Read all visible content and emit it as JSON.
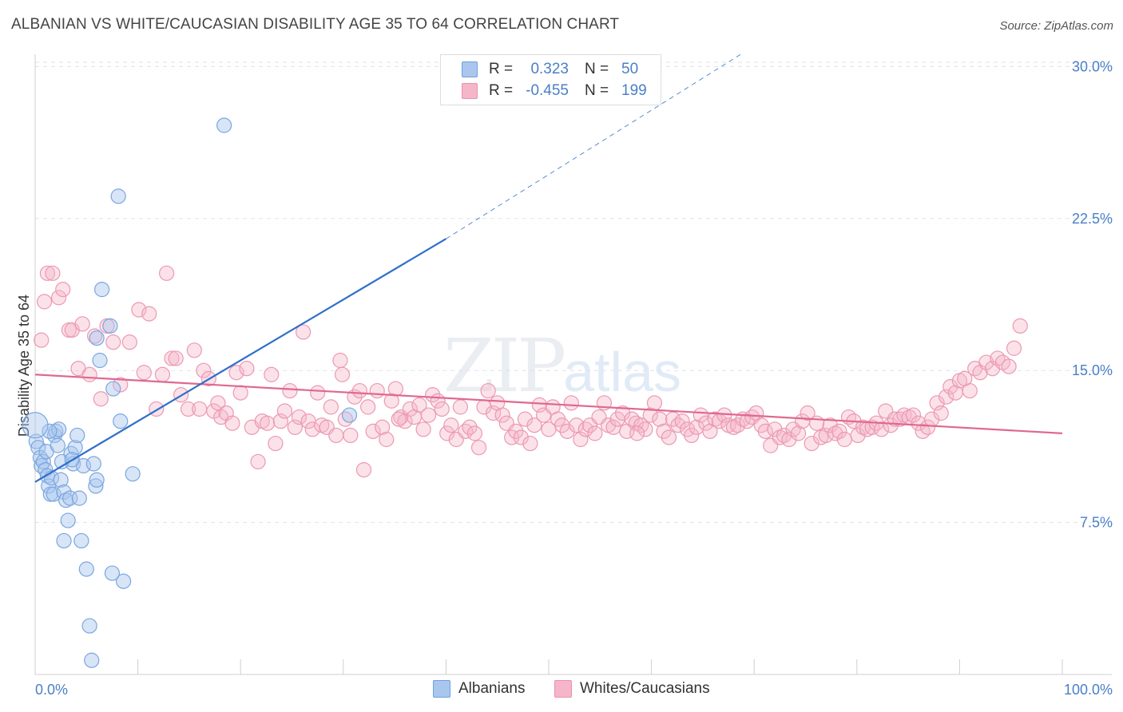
{
  "title": "ALBANIAN VS WHITE/CAUCASIAN DISABILITY AGE 35 TO 64 CORRELATION CHART",
  "source": "Source: ZipAtlas.com",
  "watermark": {
    "main": "ZIP",
    "sub": "atlas"
  },
  "legend": {
    "rows": [
      {
        "r_label": "R =",
        "r_value": "0.323",
        "n_label": "N =",
        "n_value": "50",
        "color": "#a9c6ee"
      },
      {
        "r_label": "R =",
        "r_value": "-0.455",
        "n_label": "N =",
        "n_value": "199",
        "color": "#f4b6c8"
      }
    ]
  },
  "bottom_legend": [
    {
      "label": "Albanians",
      "color": "#a9c6ee"
    },
    {
      "label": "Whites/Caucasians",
      "color": "#f4b6c8"
    }
  ],
  "chart_data": {
    "type": "scatter",
    "title": "ALBANIAN VS WHITE/CAUCASIAN DISABILITY AGE 35 TO 64 CORRELATION CHART",
    "xlabel": "",
    "ylabel": "Disability Age 35 to 64",
    "xlim": [
      0,
      100
    ],
    "ylim": [
      0,
      31
    ],
    "x_tick_labels": [
      "0.0%",
      "100.0%"
    ],
    "y_ticks": [
      7.5,
      15.0,
      22.5,
      30.0
    ],
    "y_tick_labels": [
      "7.5%",
      "15.0%",
      "22.5%",
      "30.0%"
    ],
    "grid": "horizontal dashed",
    "legend_position": "top-center",
    "colors": {
      "albanians": "#6f9fdc",
      "whites": "#ee8fae",
      "albanians_line": "#2f6fc9",
      "whites_line": "#e06890"
    },
    "series": [
      {
        "name": "Albanians",
        "r": 0.323,
        "n": 50,
        "trend": {
          "x0": 0,
          "y0": 9.5,
          "x1": 40,
          "y1": 21.5,
          "dashed_to": [
            69,
            30.7
          ]
        },
        "points": [
          [
            0.1,
            11.5
          ],
          [
            0.3,
            11.2
          ],
          [
            0.5,
            10.7
          ],
          [
            0.6,
            10.3
          ],
          [
            0.8,
            10.5
          ],
          [
            1.0,
            10.1
          ],
          [
            1.1,
            11.0
          ],
          [
            1.2,
            9.8
          ],
          [
            1.3,
            9.3
          ],
          [
            1.5,
            8.9
          ],
          [
            1.6,
            9.7
          ],
          [
            1.8,
            8.9
          ],
          [
            1.9,
            11.8
          ],
          [
            2.0,
            12.0
          ],
          [
            2.2,
            11.3
          ],
          [
            2.3,
            12.1
          ],
          [
            2.5,
            9.6
          ],
          [
            2.6,
            10.5
          ],
          [
            2.8,
            9.0
          ],
          [
            3.0,
            8.6
          ],
          [
            3.2,
            7.6
          ],
          [
            3.4,
            8.7
          ],
          [
            3.5,
            10.9
          ],
          [
            3.7,
            10.4
          ],
          [
            3.9,
            11.2
          ],
          [
            4.1,
            11.8
          ],
          [
            4.3,
            8.7
          ],
          [
            4.5,
            6.6
          ],
          [
            4.7,
            10.3
          ],
          [
            5.0,
            5.2
          ],
          [
            5.3,
            2.4
          ],
          [
            5.5,
            0.7
          ],
          [
            5.7,
            10.4
          ],
          [
            5.9,
            9.3
          ],
          [
            6.0,
            9.6
          ],
          [
            6.3,
            15.5
          ],
          [
            6.5,
            19.0
          ],
          [
            6.0,
            16.6
          ],
          [
            7.3,
            17.2
          ],
          [
            7.6,
            14.1
          ],
          [
            8.3,
            12.5
          ],
          [
            8.6,
            4.6
          ],
          [
            9.5,
            9.9
          ],
          [
            7.5,
            5.0
          ],
          [
            2.8,
            6.6
          ],
          [
            8.1,
            23.6
          ],
          [
            18.4,
            27.1
          ],
          [
            30.6,
            12.8
          ],
          [
            3.6,
            10.6
          ],
          [
            1.4,
            12.0
          ]
        ]
      },
      {
        "name": "Whites/Caucasians",
        "r": -0.455,
        "n": 199,
        "trend": {
          "x0": 0,
          "y0": 14.8,
          "x1": 100,
          "y1": 11.9
        },
        "points": [
          [
            0.6,
            16.5
          ],
          [
            0.9,
            18.4
          ],
          [
            1.2,
            19.8
          ],
          [
            1.7,
            19.8
          ],
          [
            2.3,
            18.6
          ],
          [
            2.7,
            19.0
          ],
          [
            3.3,
            17.0
          ],
          [
            3.6,
            17.0
          ],
          [
            4.2,
            15.1
          ],
          [
            4.6,
            17.3
          ],
          [
            5.3,
            14.8
          ],
          [
            5.8,
            16.7
          ],
          [
            6.4,
            13.6
          ],
          [
            7.0,
            17.2
          ],
          [
            7.6,
            16.4
          ],
          [
            8.3,
            14.3
          ],
          [
            9.2,
            16.4
          ],
          [
            10.1,
            18.0
          ],
          [
            10.6,
            14.9
          ],
          [
            11.1,
            17.8
          ],
          [
            11.8,
            13.1
          ],
          [
            12.4,
            14.8
          ],
          [
            12.8,
            19.8
          ],
          [
            13.3,
            15.6
          ],
          [
            13.7,
            15.6
          ],
          [
            14.2,
            13.8
          ],
          [
            14.9,
            13.1
          ],
          [
            15.5,
            16.0
          ],
          [
            16.0,
            13.1
          ],
          [
            16.4,
            15.0
          ],
          [
            16.9,
            14.6
          ],
          [
            17.4,
            13.0
          ],
          [
            17.8,
            13.4
          ],
          [
            18.1,
            12.7
          ],
          [
            18.6,
            12.9
          ],
          [
            19.2,
            12.4
          ],
          [
            19.6,
            14.9
          ],
          [
            20.0,
            13.9
          ],
          [
            20.6,
            15.1
          ],
          [
            21.1,
            12.2
          ],
          [
            21.7,
            10.5
          ],
          [
            22.1,
            12.5
          ],
          [
            22.6,
            12.4
          ],
          [
            23.0,
            14.8
          ],
          [
            23.4,
            11.4
          ],
          [
            23.9,
            12.5
          ],
          [
            24.3,
            13.0
          ],
          [
            24.8,
            14.0
          ],
          [
            25.3,
            12.2
          ],
          [
            25.7,
            12.7
          ],
          [
            26.1,
            16.9
          ],
          [
            26.6,
            12.5
          ],
          [
            27.0,
            12.1
          ],
          [
            27.5,
            13.9
          ],
          [
            27.9,
            12.3
          ],
          [
            28.4,
            12.2
          ],
          [
            28.8,
            13.2
          ],
          [
            29.3,
            11.8
          ],
          [
            29.7,
            15.5
          ],
          [
            29.9,
            14.8
          ],
          [
            30.2,
            12.6
          ],
          [
            30.7,
            11.8
          ],
          [
            31.1,
            13.7
          ],
          [
            31.6,
            14.0
          ],
          [
            32.0,
            10.1
          ],
          [
            32.4,
            13.2
          ],
          [
            32.9,
            12.0
          ],
          [
            33.3,
            14.0
          ],
          [
            33.8,
            12.2
          ],
          [
            34.2,
            11.6
          ],
          [
            34.7,
            13.5
          ],
          [
            35.1,
            14.1
          ],
          [
            35.6,
            12.7
          ],
          [
            36.0,
            12.5
          ],
          [
            36.5,
            13.1
          ],
          [
            36.9,
            12.7
          ],
          [
            37.4,
            13.3
          ],
          [
            37.8,
            12.1
          ],
          [
            38.3,
            12.8
          ],
          [
            38.7,
            13.8
          ],
          [
            39.2,
            13.5
          ],
          [
            39.6,
            13.1
          ],
          [
            40.1,
            11.9
          ],
          [
            40.5,
            12.3
          ],
          [
            41.0,
            11.6
          ],
          [
            41.4,
            13.2
          ],
          [
            41.9,
            12.0
          ],
          [
            42.3,
            12.2
          ],
          [
            42.8,
            11.9
          ],
          [
            43.2,
            11.2
          ],
          [
            43.7,
            13.2
          ],
          [
            44.1,
            14.0
          ],
          [
            44.6,
            12.9
          ],
          [
            45.0,
            13.4
          ],
          [
            45.5,
            12.8
          ],
          [
            45.9,
            12.4
          ],
          [
            46.4,
            11.7
          ],
          [
            46.8,
            12.0
          ],
          [
            47.3,
            11.7
          ],
          [
            47.7,
            12.6
          ],
          [
            48.2,
            11.4
          ],
          [
            48.6,
            12.3
          ],
          [
            49.1,
            13.3
          ],
          [
            49.5,
            12.8
          ],
          [
            50.0,
            12.1
          ],
          [
            50.4,
            13.2
          ],
          [
            50.9,
            12.6
          ],
          [
            51.3,
            12.3
          ],
          [
            51.8,
            12.0
          ],
          [
            52.2,
            13.4
          ],
          [
            52.7,
            12.3
          ],
          [
            53.1,
            11.6
          ],
          [
            53.6,
            12.1
          ],
          [
            54.0,
            12.3
          ],
          [
            54.5,
            11.9
          ],
          [
            54.9,
            12.7
          ],
          [
            55.4,
            13.4
          ],
          [
            55.8,
            12.3
          ],
          [
            56.3,
            12.2
          ],
          [
            56.7,
            12.6
          ],
          [
            57.2,
            12.9
          ],
          [
            57.6,
            12.0
          ],
          [
            58.1,
            12.6
          ],
          [
            58.5,
            12.4
          ],
          [
            59.0,
            12.3
          ],
          [
            59.4,
            12.1
          ],
          [
            59.9,
            12.8
          ],
          [
            60.3,
            13.4
          ],
          [
            60.8,
            12.6
          ],
          [
            61.2,
            12.0
          ],
          [
            61.7,
            11.7
          ],
          [
            62.1,
            12.6
          ],
          [
            62.6,
            12.3
          ],
          [
            63.0,
            12.5
          ],
          [
            63.5,
            12.1
          ],
          [
            63.9,
            11.8
          ],
          [
            64.4,
            12.2
          ],
          [
            64.8,
            12.8
          ],
          [
            65.3,
            12.4
          ],
          [
            65.7,
            12.0
          ],
          [
            66.2,
            12.6
          ],
          [
            66.6,
            12.5
          ],
          [
            67.1,
            12.8
          ],
          [
            67.5,
            12.3
          ],
          [
            68.0,
            12.2
          ],
          [
            68.4,
            12.3
          ],
          [
            68.9,
            12.6
          ],
          [
            69.3,
            12.5
          ],
          [
            69.8,
            12.7
          ],
          [
            70.2,
            12.9
          ],
          [
            70.7,
            12.3
          ],
          [
            71.1,
            12.0
          ],
          [
            71.6,
            11.3
          ],
          [
            72.0,
            12.1
          ],
          [
            72.5,
            11.7
          ],
          [
            72.9,
            11.8
          ],
          [
            73.4,
            11.6
          ],
          [
            73.8,
            12.1
          ],
          [
            74.3,
            11.9
          ],
          [
            74.7,
            12.5
          ],
          [
            75.2,
            12.9
          ],
          [
            75.6,
            11.4
          ],
          [
            76.1,
            12.4
          ],
          [
            76.5,
            11.7
          ],
          [
            77.0,
            11.8
          ],
          [
            77.4,
            12.3
          ],
          [
            77.9,
            11.9
          ],
          [
            78.3,
            12.0
          ],
          [
            78.8,
            11.6
          ],
          [
            79.2,
            12.7
          ],
          [
            79.7,
            12.5
          ],
          [
            80.1,
            11.8
          ],
          [
            80.6,
            12.2
          ],
          [
            81.0,
            12.1
          ],
          [
            81.5,
            12.2
          ],
          [
            81.9,
            12.4
          ],
          [
            82.4,
            12.1
          ],
          [
            82.8,
            13.0
          ],
          [
            83.3,
            12.3
          ],
          [
            83.7,
            12.6
          ],
          [
            84.2,
            12.6
          ],
          [
            84.6,
            12.8
          ],
          [
            85.1,
            12.7
          ],
          [
            85.5,
            12.8
          ],
          [
            86.0,
            12.4
          ],
          [
            86.4,
            12.0
          ],
          [
            86.9,
            12.2
          ],
          [
            87.3,
            12.6
          ],
          [
            87.8,
            13.4
          ],
          [
            88.2,
            12.9
          ],
          [
            88.7,
            13.7
          ],
          [
            89.1,
            14.2
          ],
          [
            89.6,
            13.9
          ],
          [
            90.0,
            14.5
          ],
          [
            90.5,
            14.6
          ],
          [
            91.0,
            14.0
          ],
          [
            91.5,
            15.1
          ],
          [
            92.0,
            14.9
          ],
          [
            92.6,
            15.4
          ],
          [
            93.2,
            15.1
          ],
          [
            93.7,
            15.6
          ],
          [
            94.2,
            15.4
          ],
          [
            94.8,
            15.2
          ],
          [
            95.3,
            16.1
          ],
          [
            95.9,
            17.2
          ],
          [
            35.4,
            12.6
          ],
          [
            58.6,
            11.9
          ]
        ]
      }
    ]
  }
}
